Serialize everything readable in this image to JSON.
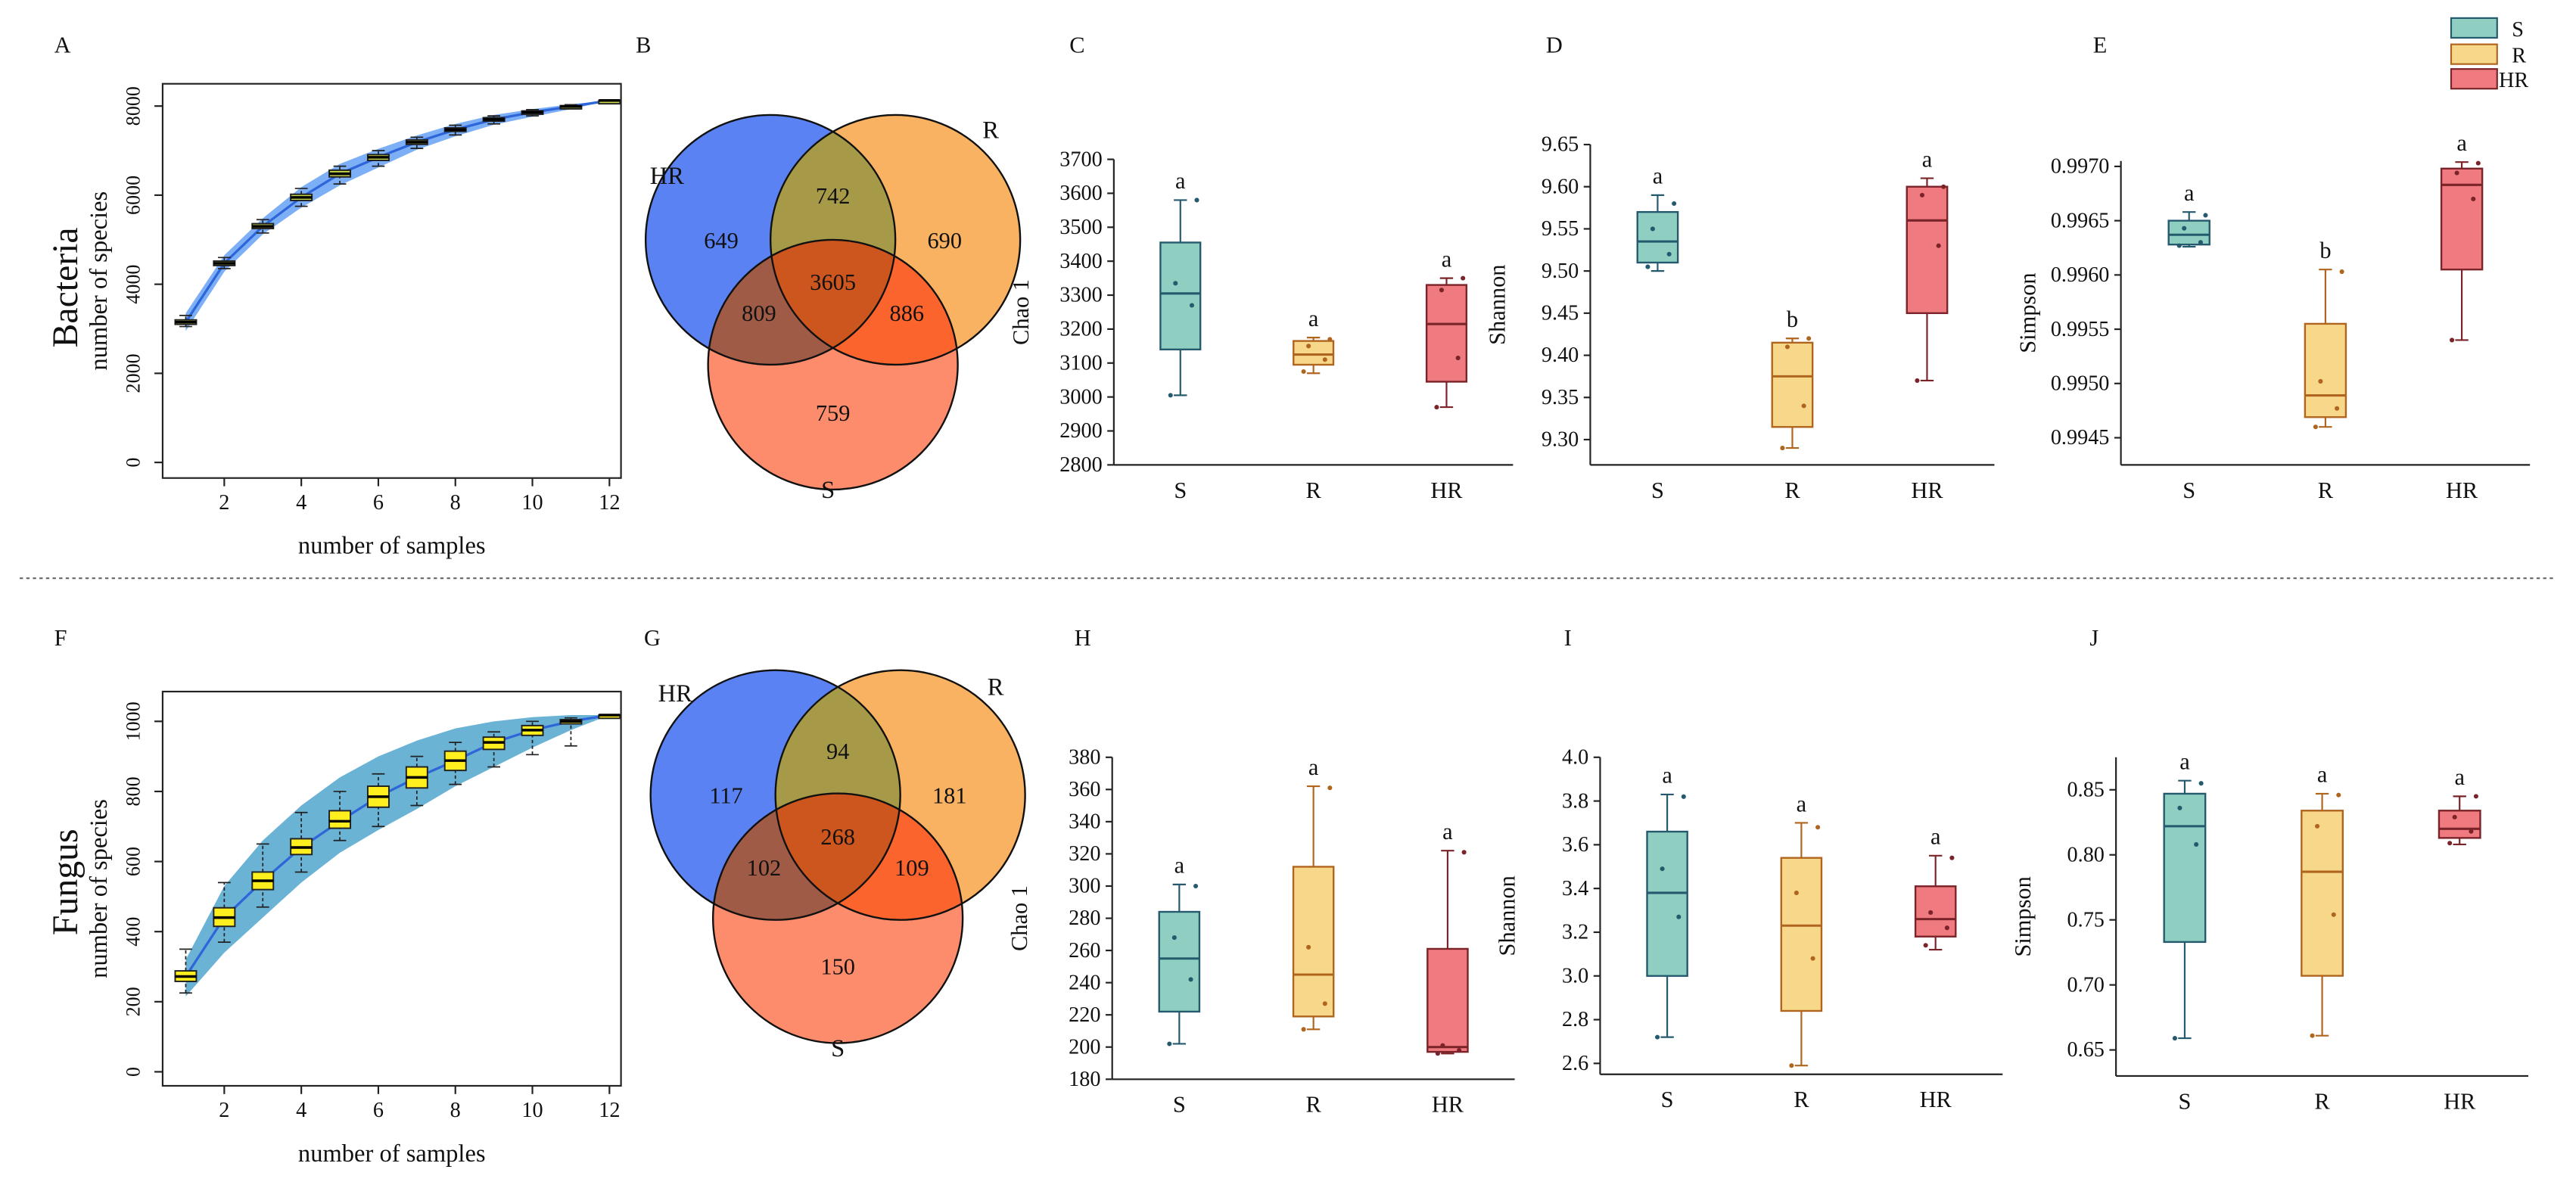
{
  "panel_letters": {
    "A": "A",
    "B": "B",
    "C": "C",
    "D": "D",
    "E": "E",
    "F": "F",
    "G": "G",
    "H": "H",
    "I": "I",
    "J": "J"
  },
  "row_labels": {
    "top": "Bacteria",
    "bottom": "Fungus"
  },
  "legend": [
    {
      "label": "S",
      "fill": "#8fcfc1",
      "stroke": "#255a6e"
    },
    {
      "label": "R",
      "fill": "#f7d78a",
      "stroke": "#b0651f"
    },
    {
      "label": "HR",
      "fill": "#ef7a7f",
      "stroke": "#7a2329"
    }
  ],
  "colors": {
    "curve": "#2e66d9",
    "band_bacteria": "#6ea6f5",
    "band_fungus": "#5aabd0",
    "box_fungus": "#ffef1e",
    "venn_hr": "#5b82f3",
    "venn_r": "#f9b262",
    "venn_s": "#fc8c6c",
    "venn_hr_r": "#a69a49",
    "venn_hr_s": "#9f5b45",
    "venn_r_s": "#fc642d",
    "venn_all": "#cd561e"
  },
  "chart_data": [
    {
      "panel": "A",
      "type": "box",
      "title": "",
      "chart": "rarefaction",
      "xlabel": "number of samples",
      "ylabel": "number of species",
      "xlim": [
        0.4,
        12.3
      ],
      "ylim": [
        -350,
        8500
      ],
      "xticks": [
        2,
        4,
        6,
        8,
        10,
        12
      ],
      "yticks": [
        0,
        2000,
        4000,
        6000,
        8000
      ],
      "x": [
        1,
        2,
        3,
        4,
        5,
        6,
        7,
        8,
        9,
        10,
        11,
        12
      ],
      "median": [
        3150,
        4470,
        5300,
        5950,
        6480,
        6850,
        7190,
        7470,
        7700,
        7860,
        7990,
        8125
      ],
      "q1": [
        3100,
        4420,
        5250,
        5880,
        6410,
        6780,
        7140,
        7430,
        7660,
        7830,
        7970,
        8125
      ],
      "q3": [
        3200,
        4520,
        5360,
        6020,
        6560,
        6910,
        7240,
        7510,
        7740,
        7890,
        8010,
        8125
      ],
      "whisker_low": [
        3050,
        4350,
        5150,
        5750,
        6250,
        6650,
        7050,
        7350,
        7600,
        7780,
        7940,
        8125
      ],
      "whisker_high": [
        3300,
        4600,
        5450,
        6150,
        6650,
        7000,
        7300,
        7570,
        7780,
        7920,
        8030,
        8125
      ],
      "band_low": [
        2950,
        4280,
        5120,
        5720,
        6220,
        6620,
        7020,
        7320,
        7580,
        7760,
        7930,
        8125
      ],
      "band_high": [
        3350,
        4650,
        5480,
        6180,
        6700,
        7040,
        7340,
        7600,
        7800,
        7930,
        8040,
        8125
      ]
    },
    {
      "panel": "B",
      "type": "venn",
      "sets": [
        "HR",
        "R",
        "S"
      ],
      "regions": {
        "HR_only": 649,
        "R_only": 690,
        "S_only": 759,
        "HR_R": 742,
        "HR_S": 809,
        "R_S": 886,
        "HR_R_S": 3605
      }
    },
    {
      "panel": "C",
      "type": "box",
      "ylabel": "Chao 1",
      "categories": [
        "S",
        "R",
        "HR"
      ],
      "ylim": [
        2800,
        3700
      ],
      "yticks": [
        2800,
        2900,
        3000,
        3100,
        3200,
        3300,
        3400,
        3500,
        3600,
        3700
      ],
      "ytick_labels": [
        "2800",
        "2900",
        "3000",
        "3100",
        "3200",
        "3300",
        "3400",
        "3500",
        "3600",
        "3700"
      ],
      "boxes": [
        {
          "min": 3005,
          "q1": 3140,
          "median": 3305,
          "q3": 3455,
          "max": 3580,
          "points": [
            3005,
            3270,
            3335,
            3580
          ]
        },
        {
          "min": 3070,
          "q1": 3095,
          "median": 3125,
          "q3": 3165,
          "max": 3175,
          "points": [
            3075,
            3110,
            3150,
            3170
          ]
        },
        {
          "min": 2970,
          "q1": 3045,
          "median": 3215,
          "q3": 3330,
          "max": 3350,
          "points": [
            2970,
            3115,
            3315,
            3350
          ]
        }
      ],
      "letters": [
        "a",
        "a",
        "a"
      ]
    },
    {
      "panel": "D",
      "type": "box",
      "ylabel": "Shannon",
      "categories": [
        "S",
        "R",
        "HR"
      ],
      "ylim": [
        9.27,
        9.65
      ],
      "yticks": [
        9.3,
        9.35,
        9.4,
        9.45,
        9.5,
        9.55,
        9.6,
        9.65
      ],
      "ytick_labels": [
        "9.30",
        "9.35",
        "9.40",
        "9.45",
        "9.50",
        "9.55",
        "9.60",
        "9.65"
      ],
      "boxes": [
        {
          "min": 9.5,
          "q1": 9.51,
          "median": 9.535,
          "q3": 9.57,
          "max": 9.59,
          "points": [
            9.505,
            9.52,
            9.55,
            9.58
          ]
        },
        {
          "min": 9.29,
          "q1": 9.315,
          "median": 9.375,
          "q3": 9.415,
          "max": 9.42,
          "points": [
            9.29,
            9.34,
            9.41,
            9.42
          ]
        },
        {
          "min": 9.37,
          "q1": 9.45,
          "median": 9.56,
          "q3": 9.6,
          "max": 9.61,
          "points": [
            9.37,
            9.53,
            9.59,
            9.6
          ]
        }
      ],
      "letters": [
        "a",
        "b",
        "a"
      ]
    },
    {
      "panel": "E",
      "type": "box",
      "ylabel": "Simpson",
      "categories": [
        "S",
        "R",
        "HR"
      ],
      "ylim": [
        0.99425,
        0.99705
      ],
      "yticks": [
        0.9945,
        0.995,
        0.9955,
        0.996,
        0.9965,
        0.997
      ],
      "ytick_labels": [
        "0.9945",
        "0.9950",
        "0.9955",
        "0.9960",
        "0.9965",
        "0.9970"
      ],
      "boxes": [
        {
          "min": 0.99626,
          "q1": 0.99628,
          "median": 0.99637,
          "q3": 0.9965,
          "max": 0.99658,
          "points": [
            0.99627,
            0.9963,
            0.99643,
            0.99655
          ]
        },
        {
          "min": 0.9946,
          "q1": 0.99469,
          "median": 0.99489,
          "q3": 0.99555,
          "max": 0.99605,
          "points": [
            0.9946,
            0.99477,
            0.99502,
            0.99603
          ]
        },
        {
          "min": 0.9954,
          "q1": 0.99605,
          "median": 0.99683,
          "q3": 0.99698,
          "max": 0.99704,
          "points": [
            0.9954,
            0.9967,
            0.99694,
            0.99703
          ]
        }
      ],
      "letters": [
        "a",
        "b",
        "a"
      ]
    },
    {
      "panel": "F",
      "type": "box",
      "title": "",
      "chart": "rarefaction",
      "xlabel": "number of samples",
      "ylabel": "number of species",
      "xlim": [
        0.4,
        12.3
      ],
      "ylim": [
        -40,
        1085
      ],
      "xticks": [
        2,
        4,
        6,
        8,
        10,
        12
      ],
      "yticks": [
        0,
        200,
        400,
        600,
        800,
        1000
      ],
      "x": [
        1,
        2,
        3,
        4,
        5,
        6,
        7,
        8,
        9,
        10,
        11,
        12
      ],
      "median": [
        272,
        440,
        545,
        640,
        715,
        785,
        840,
        888,
        940,
        975,
        1000,
        1018
      ],
      "q1": [
        258,
        415,
        520,
        620,
        695,
        755,
        810,
        860,
        920,
        960,
        993,
        1018
      ],
      "q3": [
        288,
        468,
        570,
        665,
        745,
        815,
        870,
        915,
        955,
        988,
        1005,
        1018
      ],
      "whisker_low": [
        225,
        370,
        470,
        570,
        660,
        700,
        760,
        820,
        870,
        905,
        930,
        1018
      ],
      "whisker_high": [
        350,
        540,
        650,
        740,
        800,
        850,
        900,
        940,
        970,
        1000,
        1010,
        1018
      ],
      "band_low": [
        215,
        340,
        440,
        540,
        625,
        690,
        750,
        815,
        870,
        925,
        975,
        1018
      ],
      "band_high": [
        320,
        530,
        660,
        760,
        840,
        900,
        945,
        980,
        1000,
        1012,
        1018,
        1018
      ]
    },
    {
      "panel": "G",
      "type": "venn",
      "sets": [
        "HR",
        "R",
        "S"
      ],
      "regions": {
        "HR_only": 117,
        "R_only": 181,
        "S_only": 150,
        "HR_R": 94,
        "HR_S": 102,
        "R_S": 109,
        "HR_R_S": 268
      }
    },
    {
      "panel": "H",
      "type": "box",
      "ylabel": "Chao 1",
      "categories": [
        "S",
        "R",
        "HR"
      ],
      "ylim": [
        180,
        380
      ],
      "yticks": [
        180,
        200,
        220,
        240,
        260,
        280,
        300,
        320,
        340,
        360,
        380
      ],
      "ytick_labels": [
        "180",
        "200",
        "220",
        "240",
        "260",
        "280",
        "300",
        "320",
        "340",
        "360",
        "380"
      ],
      "boxes": [
        {
          "min": 202,
          "q1": 222,
          "median": 255,
          "q3": 284,
          "max": 301,
          "points": [
            202,
            242,
            268,
            300
          ]
        },
        {
          "min": 211,
          "q1": 219,
          "median": 245,
          "q3": 312,
          "max": 362,
          "points": [
            211,
            227,
            262,
            361
          ]
        },
        {
          "min": 196,
          "q1": 197,
          "median": 200,
          "q3": 261,
          "max": 322,
          "points": [
            196,
            198,
            201,
            321
          ]
        }
      ],
      "letters": [
        "a",
        "a",
        "a"
      ]
    },
    {
      "panel": "I",
      "type": "box",
      "ylabel": "Shannon",
      "categories": [
        "S",
        "R",
        "HR"
      ],
      "ylim": [
        2.55,
        4.0
      ],
      "yticks": [
        2.6,
        2.8,
        3.0,
        3.2,
        3.4,
        3.6,
        3.8,
        4.0
      ],
      "ytick_labels": [
        "2.6",
        "2.8",
        "3.0",
        "3.2",
        "3.4",
        "3.6",
        "3.8",
        "4.0"
      ],
      "boxes": [
        {
          "min": 2.72,
          "q1": 3.0,
          "median": 3.38,
          "q3": 3.66,
          "max": 3.83,
          "points": [
            2.72,
            3.27,
            3.49,
            3.82
          ]
        },
        {
          "min": 2.59,
          "q1": 2.84,
          "median": 3.23,
          "q3": 3.54,
          "max": 3.7,
          "points": [
            2.59,
            3.08,
            3.38,
            3.68
          ]
        },
        {
          "min": 3.12,
          "q1": 3.18,
          "median": 3.26,
          "q3": 3.41,
          "max": 3.55,
          "points": [
            3.14,
            3.22,
            3.29,
            3.54
          ]
        }
      ],
      "letters": [
        "a",
        "a",
        "a"
      ]
    },
    {
      "panel": "J",
      "type": "box",
      "ylabel": "Simpson",
      "categories": [
        "S",
        "R",
        "HR"
      ],
      "ylim": [
        0.63,
        0.875
      ],
      "yticks": [
        0.65,
        0.7,
        0.75,
        0.8,
        0.85
      ],
      "ytick_labels": [
        "0.65",
        "0.70",
        "0.75",
        "0.80",
        "0.85"
      ],
      "boxes": [
        {
          "min": 0.659,
          "q1": 0.733,
          "median": 0.822,
          "q3": 0.847,
          "max": 0.857,
          "points": [
            0.659,
            0.808,
            0.836,
            0.855
          ]
        },
        {
          "min": 0.661,
          "q1": 0.707,
          "median": 0.787,
          "q3": 0.834,
          "max": 0.847,
          "points": [
            0.661,
            0.754,
            0.822,
            0.846
          ]
        },
        {
          "min": 0.808,
          "q1": 0.813,
          "median": 0.82,
          "q3": 0.834,
          "max": 0.845,
          "points": [
            0.809,
            0.818,
            0.829,
            0.845
          ]
        }
      ],
      "letters": [
        "a",
        "a",
        "a"
      ]
    }
  ]
}
